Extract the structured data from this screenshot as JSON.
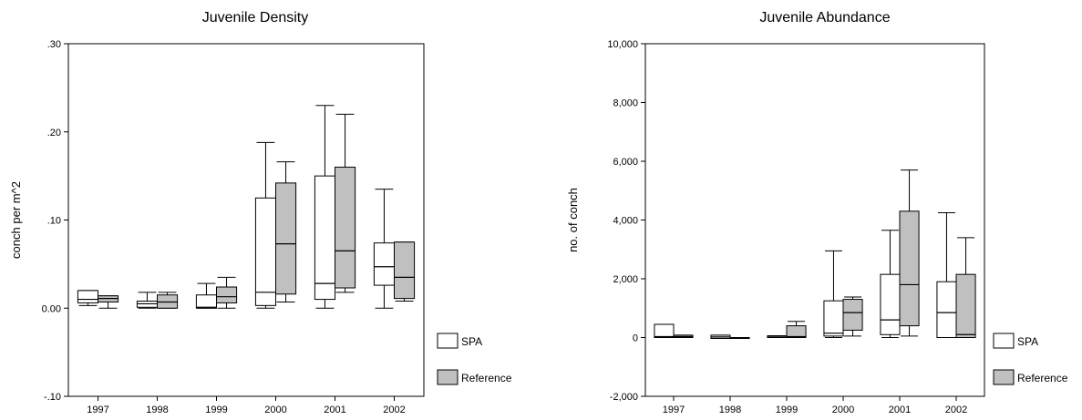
{
  "colors": {
    "spa_fill": "#ffffff",
    "reference_fill": "#c0c0c0",
    "stroke": "#000000"
  },
  "chart_data": [
    {
      "type": "box",
      "title": "Juvenile Density",
      "xlabel": "",
      "ylabel": "conch per m^2",
      "ylim": [
        -0.1,
        0.3
      ],
      "yticks": [
        -0.1,
        0.0,
        0.1,
        0.2,
        0.3
      ],
      "ytick_labels": [
        "-.10",
        "0.00",
        ".10",
        ".20",
        ".30"
      ],
      "categories": [
        "1997",
        "1998",
        "1999",
        "2000",
        "2001",
        "2002"
      ],
      "legend": {
        "position": "bottom-right outside plot",
        "entries": [
          "SPA",
          "Reference"
        ]
      },
      "grid": false,
      "series": [
        {
          "name": "SPA",
          "boxes": [
            {
              "min": 0.003,
              "q1": 0.006,
              "median": 0.01,
              "q3": 0.02,
              "max": 0.02
            },
            {
              "min": 0.0,
              "q1": 0.001,
              "median": 0.005,
              "q3": 0.008,
              "max": 0.018
            },
            {
              "min": 0.0,
              "q1": 0.0,
              "median": 0.001,
              "q3": 0.015,
              "max": 0.028
            },
            {
              "min": 0.0,
              "q1": 0.003,
              "median": 0.018,
              "q3": 0.125,
              "max": 0.188
            },
            {
              "min": 0.0,
              "q1": 0.01,
              "median": 0.028,
              "q3": 0.15,
              "max": 0.23
            },
            {
              "min": 0.0,
              "q1": 0.026,
              "median": 0.047,
              "q3": 0.074,
              "max": 0.135
            }
          ]
        },
        {
          "name": "Reference",
          "boxes": [
            {
              "min": 0.0,
              "q1": 0.007,
              "median": 0.011,
              "q3": 0.014,
              "max": 0.014
            },
            {
              "min": 0.0,
              "q1": 0.0,
              "median": 0.007,
              "q3": 0.015,
              "max": 0.018
            },
            {
              "min": 0.0,
              "q1": 0.006,
              "median": 0.013,
              "q3": 0.024,
              "max": 0.035
            },
            {
              "min": 0.007,
              "q1": 0.016,
              "median": 0.073,
              "q3": 0.142,
              "max": 0.166
            },
            {
              "min": 0.018,
              "q1": 0.023,
              "median": 0.065,
              "q3": 0.16,
              "max": 0.22
            },
            {
              "min": 0.008,
              "q1": 0.011,
              "median": 0.035,
              "q3": 0.075,
              "max": 0.075
            }
          ]
        }
      ]
    },
    {
      "type": "box",
      "title": "Juvenile Abundance",
      "xlabel": "",
      "ylabel": "no. of conch",
      "ylim": [
        -2000,
        10000
      ],
      "yticks": [
        -2000,
        0,
        2000,
        4000,
        6000,
        8000,
        10000
      ],
      "ytick_labels": [
        "-2,000",
        "0",
        "2,000",
        "4,000",
        "6,000",
        "8,000",
        "10,000"
      ],
      "categories": [
        "1997",
        "1998",
        "1999",
        "2000",
        "2001",
        "2002"
      ],
      "legend": {
        "position": "bottom-right outside plot",
        "entries": [
          "SPA",
          "Reference"
        ]
      },
      "grid": false,
      "series": [
        {
          "name": "SPA",
          "boxes": [
            {
              "min": 0,
              "q1": 0,
              "median": 30,
              "q3": 450,
              "max": 450
            },
            {
              "min": -30,
              "q1": -30,
              "median": 20,
              "q3": 80,
              "max": 80
            },
            {
              "min": 0,
              "q1": 0,
              "median": 20,
              "q3": 60,
              "max": 60
            },
            {
              "min": 0,
              "q1": 50,
              "median": 150,
              "q3": 1250,
              "max": 2950
            },
            {
              "min": 0,
              "q1": 100,
              "median": 600,
              "q3": 2150,
              "max": 3650
            },
            {
              "min": 0,
              "q1": 0,
              "median": 850,
              "q3": 1900,
              "max": 4250
            }
          ]
        },
        {
          "name": "Reference",
          "boxes": [
            {
              "min": 0,
              "q1": 0,
              "median": 30,
              "q3": 80,
              "max": 80
            },
            {
              "min": -20,
              "q1": -20,
              "median": -10,
              "q3": 0,
              "max": 0
            },
            {
              "min": 0,
              "q1": 0,
              "median": 30,
              "q3": 400,
              "max": 550
            },
            {
              "min": 50,
              "q1": 250,
              "median": 850,
              "q3": 1300,
              "max": 1380
            },
            {
              "min": 50,
              "q1": 400,
              "median": 1800,
              "q3": 4300,
              "max": 5700
            },
            {
              "min": 0,
              "q1": 0,
              "median": 100,
              "q3": 2150,
              "max": 3400
            }
          ]
        }
      ]
    }
  ]
}
